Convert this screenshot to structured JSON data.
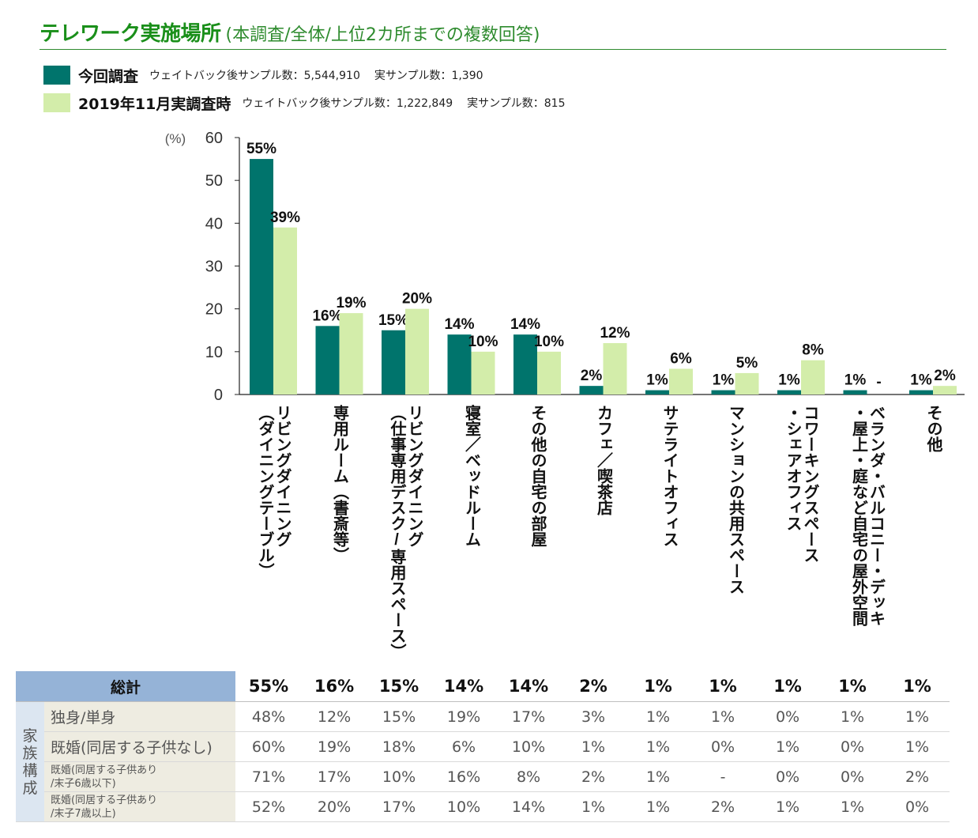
{
  "header": {
    "title": "テレワーク実施場所",
    "subtitle": "(本調査/全体/上位2カ所までの複数回答)"
  },
  "legend": {
    "current": {
      "name": "今回調査",
      "note1": "ウェイトバック後サンプル数：5,544,910",
      "note2": "実サンプル数：1,390"
    },
    "previous": {
      "name": "2019年11月実調査時",
      "note1": "ウェイトバック後サンプル数：1,222,849",
      "note2": "実サンプル数：815"
    }
  },
  "colors": {
    "current": "#00746c",
    "previous": "#d3edaa",
    "title": "#1a8f1a",
    "header_cell": "#95b3d7",
    "group_cell": "#dce6f1",
    "label_cell": "#eeece1"
  },
  "chart_data": {
    "type": "bar",
    "ylabel": "(%)",
    "ylim": [
      0,
      60
    ],
    "yticks": [
      0,
      10,
      20,
      30,
      40,
      50,
      60
    ],
    "categories": [
      "リビングダイニング\n（ダイニングテーブル）",
      "専用ルーム（書斎等）",
      "リビングダイニング\n（仕事専用デスク/専用スペース）",
      "寝室／ベッドルーム",
      "その他の自宅の部屋",
      "カフェ／喫茶店",
      "サテライトオフィス",
      "マンションの共用スペース",
      "コワーキングスペース\n・シェアオフィス",
      "ベランダ・バルコニー・デッキ\n・屋上・庭など自宅の屋外空間",
      "その他"
    ],
    "series": [
      {
        "name": "今回調査",
        "values": [
          55,
          16,
          15,
          14,
          14,
          2,
          1,
          1,
          1,
          1,
          1
        ],
        "labels": [
          "55%",
          "16%",
          "15%",
          "14%",
          "14%",
          "2%",
          "1%",
          "1%",
          "1%",
          "1%",
          "1%"
        ]
      },
      {
        "name": "2019年11月実調査時",
        "values": [
          39,
          19,
          20,
          10,
          10,
          12,
          6,
          5,
          8,
          null,
          2
        ],
        "labels": [
          "39%",
          "19%",
          "20%",
          "10%",
          "10%",
          "12%",
          "6%",
          "5%",
          "8%",
          "-",
          "2%"
        ]
      }
    ]
  },
  "table": {
    "total_label": "総計",
    "total": [
      "55%",
      "16%",
      "15%",
      "14%",
      "14%",
      "2%",
      "1%",
      "1%",
      "1%",
      "1%",
      "1%"
    ],
    "group_label": "家族構成",
    "rows": [
      {
        "label": "独身/単身",
        "values": [
          "48%",
          "12%",
          "15%",
          "19%",
          "17%",
          "3%",
          "1%",
          "1%",
          "0%",
          "1%",
          "1%"
        ]
      },
      {
        "label": "既婚(同居する子供なし)",
        "values": [
          "60%",
          "19%",
          "18%",
          "6%",
          "10%",
          "1%",
          "1%",
          "0%",
          "1%",
          "0%",
          "1%"
        ]
      },
      {
        "label": "既婚(同居する子供あり\n/末子6歳以下)",
        "values": [
          "71%",
          "17%",
          "10%",
          "16%",
          "8%",
          "2%",
          "1%",
          "-",
          "0%",
          "0%",
          "2%"
        ]
      },
      {
        "label": "既婚(同居する子供あり\n/末子7歳以上)",
        "values": [
          "52%",
          "20%",
          "17%",
          "10%",
          "14%",
          "1%",
          "1%",
          "2%",
          "1%",
          "1%",
          "0%"
        ]
      }
    ]
  }
}
